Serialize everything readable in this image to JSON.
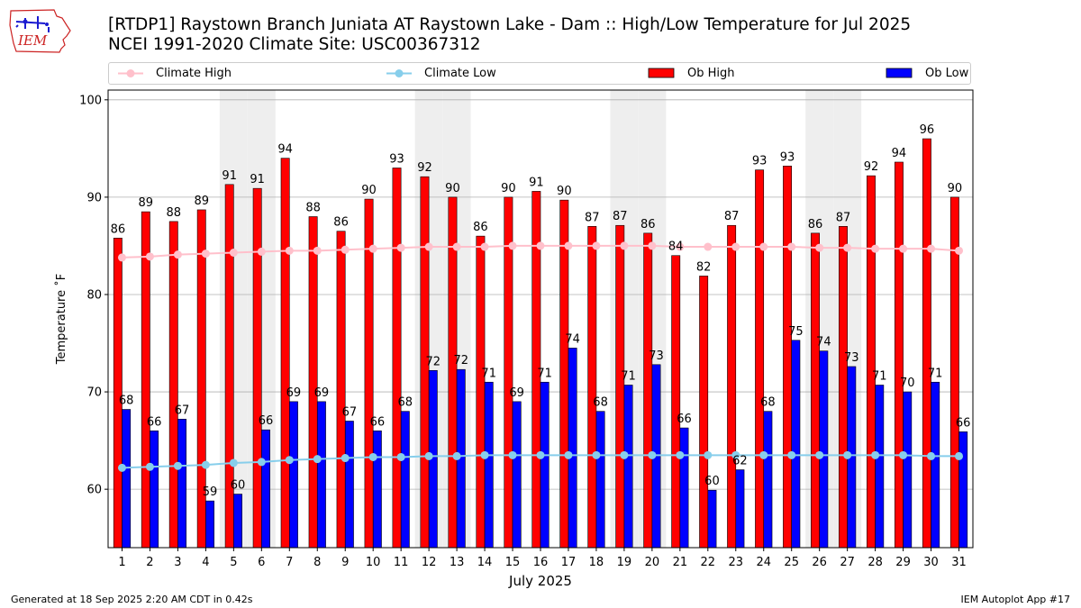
{
  "header": {
    "title_line1": "[RTDP1] Raystown Branch Juniata  AT Raystown Lake - Dam :: High/Low Temperature for Jul 2025",
    "title_line2": "NCEI 1991-2020 Climate Site: USC00367312",
    "logo_text": "IEM"
  },
  "legend": {
    "items": [
      {
        "label": "Climate High",
        "kind": "line",
        "color": "#ffc0cb"
      },
      {
        "label": "Climate Low",
        "kind": "line",
        "color": "#87ceeb"
      },
      {
        "label": "Ob High",
        "kind": "bar",
        "color": "#ff0000"
      },
      {
        "label": "Ob Low",
        "kind": "bar",
        "color": "#0000ff"
      }
    ]
  },
  "footer": {
    "left": "Generated at 18 Sep 2025 2:20 AM CDT in 0.42s",
    "right": "IEM Autoplot App #17"
  },
  "chart_data": {
    "type": "bar",
    "xlabel": "July 2025",
    "ylabel": "Temperature $^\\circ$F",
    "ylabel_display": "Temperature ˚F",
    "ylim": [
      54,
      101
    ],
    "yticks": [
      60,
      70,
      80,
      90,
      100
    ],
    "grid": true,
    "legend_position": "top",
    "weekend_shading_days": [
      5,
      6,
      12,
      13,
      19,
      20,
      26,
      27
    ],
    "categories": [
      1,
      2,
      3,
      4,
      5,
      6,
      7,
      8,
      9,
      10,
      11,
      12,
      13,
      14,
      15,
      16,
      17,
      18,
      19,
      20,
      21,
      22,
      23,
      24,
      25,
      26,
      27,
      28,
      29,
      30,
      31
    ],
    "series": [
      {
        "name": "Ob High",
        "kind": "bar",
        "color": "#ff0000",
        "values": [
          85.8,
          88.5,
          87.5,
          88.7,
          91.3,
          90.9,
          94.0,
          88.0,
          86.5,
          89.8,
          93.0,
          92.1,
          90.0,
          86.0,
          90.0,
          90.6,
          89.7,
          87.0,
          87.1,
          86.3,
          84.0,
          81.9,
          87.1,
          92.8,
          93.2,
          86.3,
          87.0,
          92.2,
          93.6,
          96.0,
          90.0
        ],
        "labels": [
          86,
          89,
          88,
          89,
          91,
          91,
          94,
          88,
          86,
          90,
          93,
          92,
          90,
          86,
          90,
          91,
          90,
          87,
          87,
          86,
          84,
          82,
          87,
          93,
          93,
          86,
          87,
          92,
          94,
          96,
          90
        ]
      },
      {
        "name": "Ob Low",
        "kind": "bar",
        "color": "#0000ff",
        "values": [
          68.2,
          66.0,
          67.2,
          58.8,
          59.5,
          66.1,
          69.0,
          69.0,
          67.0,
          66.0,
          68.0,
          72.2,
          72.3,
          71.0,
          69.0,
          71.0,
          74.5,
          68.0,
          70.7,
          72.8,
          66.3,
          59.9,
          62.0,
          68.0,
          75.3,
          74.2,
          72.6,
          70.7,
          70.0,
          71.0,
          65.9
        ],
        "labels": [
          68,
          66,
          67,
          59,
          60,
          66,
          69,
          69,
          67,
          66,
          68,
          72,
          72,
          71,
          69,
          71,
          74,
          68,
          71,
          73,
          66,
          60,
          62,
          68,
          75,
          74,
          73,
          71,
          70,
          71,
          66
        ]
      },
      {
        "name": "Climate High",
        "kind": "line",
        "color": "#ffc0cb",
        "values": [
          83.8,
          83.9,
          84.1,
          84.2,
          84.3,
          84.4,
          84.5,
          84.5,
          84.6,
          84.7,
          84.8,
          84.9,
          84.9,
          84.9,
          85.0,
          85.0,
          85.0,
          85.0,
          85.0,
          85.0,
          84.9,
          84.9,
          84.9,
          84.9,
          84.9,
          84.8,
          84.8,
          84.7,
          84.7,
          84.7,
          84.5
        ]
      },
      {
        "name": "Climate Low",
        "kind": "line",
        "color": "#87ceeb",
        "values": [
          62.2,
          62.3,
          62.4,
          62.5,
          62.7,
          62.8,
          63.0,
          63.1,
          63.2,
          63.3,
          63.3,
          63.4,
          63.4,
          63.5,
          63.5,
          63.5,
          63.5,
          63.5,
          63.5,
          63.5,
          63.5,
          63.5,
          63.5,
          63.5,
          63.5,
          63.5,
          63.5,
          63.5,
          63.5,
          63.4,
          63.4
        ]
      }
    ]
  }
}
